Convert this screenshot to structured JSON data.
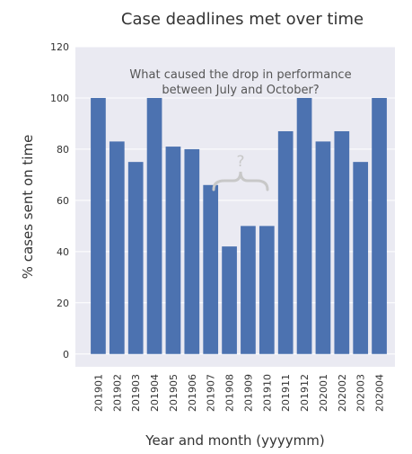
{
  "chart_data": {
    "type": "bar",
    "title": "Case deadlines met over time",
    "xlabel": "Year and month (yyyymm)",
    "ylabel": "% cases sent on time",
    "categories": [
      "201901",
      "201902",
      "201903",
      "201904",
      "201905",
      "201906",
      "201907",
      "201908",
      "201909",
      "201910",
      "201911",
      "201912",
      "202001",
      "202002",
      "202003",
      "202004"
    ],
    "values": [
      100,
      83,
      75,
      100,
      81,
      80,
      66,
      42,
      50,
      50,
      87,
      100,
      83,
      87,
      75,
      100
    ],
    "ylim": [
      -5,
      120
    ],
    "yticks": [
      "0",
      "20",
      "40",
      "60",
      "80",
      "100",
      "120"
    ],
    "grid": "horizontal",
    "annotation": {
      "line1": "What caused the drop in performance",
      "line2": "between July and October?",
      "question_mark": "?"
    },
    "colors": {
      "bar": "#4c72b0",
      "plot_background": "#eaeaf2",
      "gridline": "#ffffff",
      "annotation_text": "#555555",
      "brace": "#c8c8c8"
    }
  }
}
